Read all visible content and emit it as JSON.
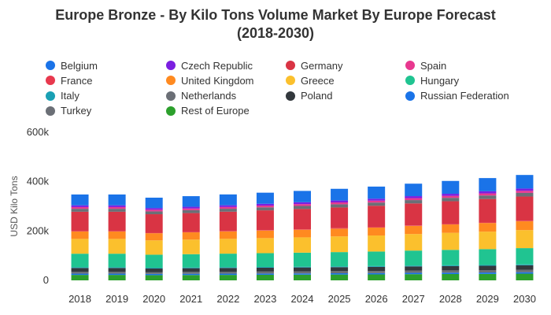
{
  "chart_data": {
    "type": "bar",
    "stacked": true,
    "title": "Europe Bronze - By Kilo Tons Volume Market By Europe Forecast (2018-2030)",
    "title_lines": [
      "Europe Bronze - By Kilo Tons Volume Market By Europe Forecast",
      "(2018-2030)"
    ],
    "xlabel": "",
    "ylabel": "USD Kilo Tons",
    "ylim": [
      0,
      600000
    ],
    "yticks": [
      0,
      200000,
      400000,
      600000
    ],
    "ytick_labels": [
      "0",
      "200k",
      "400k",
      "600k"
    ],
    "grid": false,
    "legend_position": "top",
    "categories": [
      "2018",
      "2019",
      "2020",
      "2021",
      "2022",
      "2023",
      "2024",
      "2025",
      "2026",
      "2027",
      "2028",
      "2029",
      "2030"
    ],
    "series": [
      {
        "name": "Rest of Europe",
        "color": "#2ca02c",
        "values": [
          22000,
          22000,
          21000,
          21500,
          22000,
          22500,
          23000,
          23500,
          24000,
          25000,
          25500,
          26000,
          27000
        ]
      },
      {
        "name": "Belgium",
        "color": "#1a73e8",
        "values": [
          5000,
          5000,
          5000,
          5000,
          5000,
          5000,
          5000,
          5200,
          5300,
          5500,
          5600,
          5800,
          6000
        ]
      },
      {
        "name": "Turkey",
        "color": "#6b6f76",
        "values": [
          8000,
          8000,
          7500,
          7800,
          8000,
          8200,
          8400,
          8600,
          8800,
          9000,
          9200,
          9500,
          9800
        ]
      },
      {
        "name": "Poland",
        "color": "#33383d",
        "values": [
          15000,
          15000,
          14500,
          14800,
          15200,
          15500,
          15800,
          16100,
          16500,
          17000,
          17400,
          17800,
          18300
        ]
      },
      {
        "name": "Italy",
        "color": "#1aa0b4",
        "values": [
          3000,
          3000,
          3000,
          3000,
          3000,
          3000,
          3000,
          3100,
          3200,
          3200,
          3300,
          3400,
          3500
        ]
      },
      {
        "name": "Hungary",
        "color": "#20c491",
        "values": [
          55000,
          55000,
          53000,
          54000,
          55000,
          56000,
          57000,
          58000,
          59000,
          61000,
          62500,
          64000,
          66000
        ]
      },
      {
        "name": "Greece",
        "color": "#fbc02d",
        "values": [
          60000,
          60000,
          58000,
          59000,
          60000,
          61000,
          62000,
          63500,
          65000,
          67000,
          69000,
          71000,
          73000
        ]
      },
      {
        "name": "United Kingdom",
        "color": "#ff8a20",
        "values": [
          30000,
          30000,
          29000,
          29500,
          30000,
          30500,
          31000,
          31500,
          32000,
          33000,
          34000,
          35000,
          36000
        ]
      },
      {
        "name": "France",
        "color": "#e8394e",
        "values": [
          2000,
          2000,
          2000,
          2000,
          2000,
          2000,
          2000,
          2000,
          2000,
          2100,
          2100,
          2200,
          2200
        ]
      },
      {
        "name": "Germany",
        "color": "#d93444",
        "values": [
          78000,
          78000,
          75000,
          76000,
          78000,
          80000,
          82000,
          84000,
          86500,
          89000,
          92000,
          95000,
          98000
        ]
      },
      {
        "name": "Netherlands",
        "color": "#6b6f76",
        "values": [
          12000,
          12000,
          11500,
          11800,
          12000,
          12200,
          12500,
          12800,
          13100,
          13500,
          13900,
          14300,
          14700
        ]
      },
      {
        "name": "Spain",
        "color": "#e8388f",
        "values": [
          7000,
          7000,
          6800,
          6900,
          7000,
          7200,
          7400,
          7600,
          7800,
          8000,
          8200,
          8500,
          8800
        ]
      },
      {
        "name": "Czech Republic",
        "color": "#7b1fe0",
        "values": [
          7000,
          7000,
          6800,
          6900,
          7000,
          7200,
          7400,
          7600,
          7800,
          8000,
          8200,
          8500,
          8800
        ]
      },
      {
        "name": "Russian Federation",
        "color": "#1a73e8",
        "values": [
          44000,
          44000,
          42000,
          43000,
          44000,
          45000,
          46000,
          47500,
          49000,
          50500,
          52000,
          53500,
          55000
        ]
      }
    ],
    "legend": [
      {
        "name": "Belgium",
        "color": "#1a73e8"
      },
      {
        "name": "Czech Republic",
        "color": "#7b1fe0"
      },
      {
        "name": "Germany",
        "color": "#d93444"
      },
      {
        "name": "Spain",
        "color": "#e8388f"
      },
      {
        "name": "France",
        "color": "#e8394e"
      },
      {
        "name": "United Kingdom",
        "color": "#ff8a20"
      },
      {
        "name": "Greece",
        "color": "#fbc02d"
      },
      {
        "name": "Hungary",
        "color": "#20c491"
      },
      {
        "name": "Italy",
        "color": "#1aa0b4"
      },
      {
        "name": "Netherlands",
        "color": "#6b6f76"
      },
      {
        "name": "Poland",
        "color": "#33383d"
      },
      {
        "name": "Russian Federation",
        "color": "#1a73e8"
      },
      {
        "name": "Turkey",
        "color": "#6b6f76"
      },
      {
        "name": "Rest of Europe",
        "color": "#2ca02c"
      }
    ]
  }
}
